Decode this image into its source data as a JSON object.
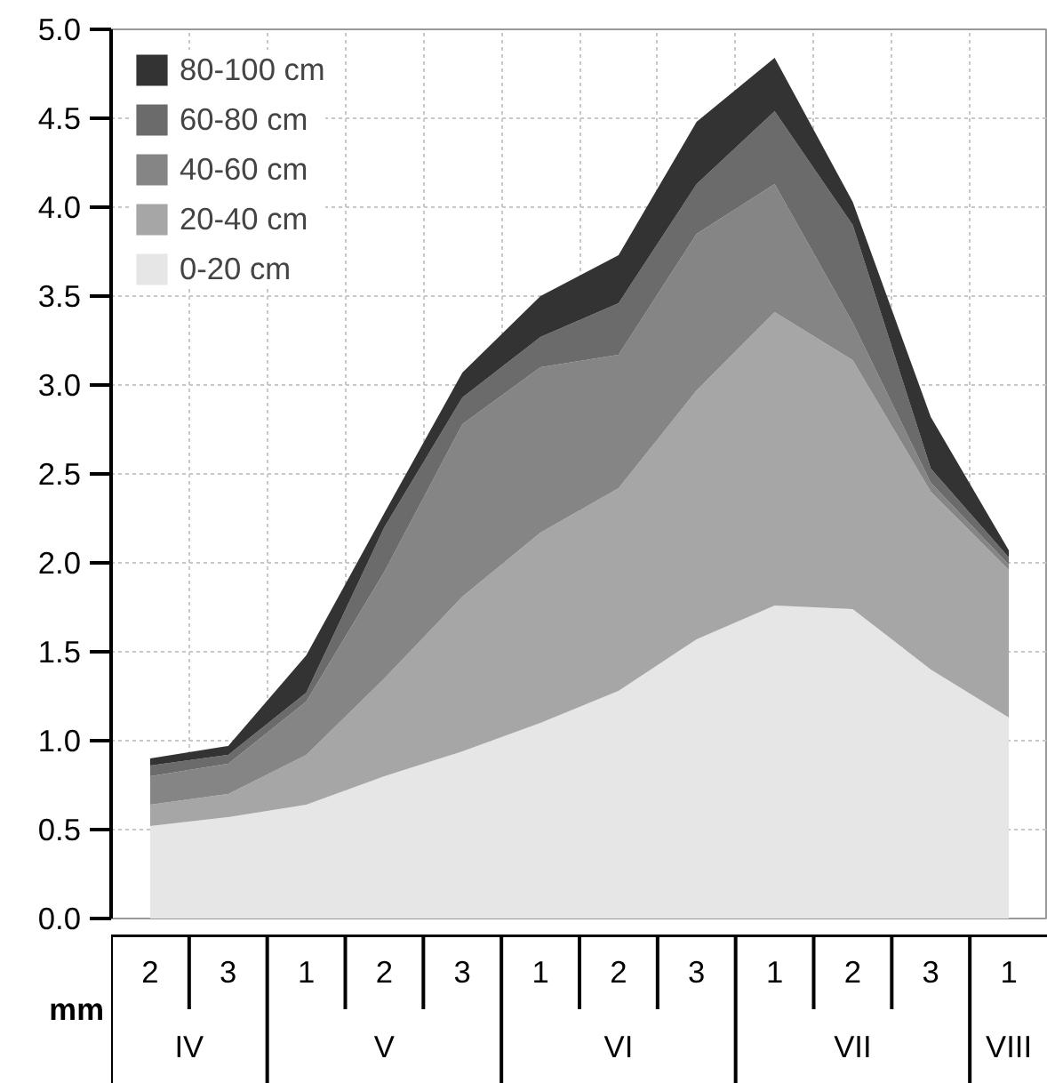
{
  "chart_data": {
    "type": "area",
    "stacked": true,
    "categories": [
      "2",
      "3",
      "1",
      "2",
      "3",
      "1",
      "2",
      "3",
      "1",
      "2",
      "3",
      "1"
    ],
    "annotations": [
      "IV",
      "V",
      "VI",
      "VII",
      "VIII"
    ],
    "ylabel": "mm",
    "ylim": [
      0,
      5.0
    ],
    "yticks": [
      {
        "value": 0,
        "label": "0.0"
      },
      {
        "value": 0.5,
        "label": "0.5"
      },
      {
        "value": 1,
        "label": "1.0"
      },
      {
        "value": 1.5,
        "label": "1.5"
      },
      {
        "value": 2,
        "label": "2.0"
      },
      {
        "value": 2.5,
        "label": "2.5"
      },
      {
        "value": 3,
        "label": "3.0"
      },
      {
        "value": 3.5,
        "label": "3.5"
      },
      {
        "value": 4,
        "label": "4.0"
      },
      {
        "value": 4.5,
        "label": "4.5"
      },
      {
        "value": 5,
        "label": "5.0"
      }
    ],
    "grid": true,
    "legend": "top left",
    "series": [
      {
        "name": "0-20 cm",
        "color": "#e6e6e6",
        "values": [
          0.52,
          0.57,
          0.64,
          0.8,
          0.94,
          1.1,
          1.28,
          1.57,
          1.76,
          1.74,
          1.4,
          1.13
        ]
      },
      {
        "name": "20-40 cm",
        "color": "#a6a6a6",
        "values": [
          0.12,
          0.13,
          0.28,
          0.55,
          0.87,
          1.07,
          1.14,
          1.4,
          1.65,
          1.4,
          1.0,
          0.83
        ]
      },
      {
        "name": "40-60 cm",
        "color": "#858585",
        "values": [
          0.16,
          0.17,
          0.3,
          0.6,
          0.97,
          0.93,
          0.75,
          0.88,
          0.72,
          0.21,
          0.05,
          0.03
        ]
      },
      {
        "name": "60-80 cm",
        "color": "#6b6b6b",
        "values": [
          0.06,
          0.05,
          0.05,
          0.25,
          0.15,
          0.17,
          0.29,
          0.28,
          0.41,
          0.55,
          0.08,
          0.04
        ]
      },
      {
        "name": "80-100 cm",
        "color": "#333333",
        "values": [
          0.04,
          0.05,
          0.21,
          0.08,
          0.14,
          0.23,
          0.27,
          0.35,
          0.3,
          0.13,
          0.29,
          0.04
        ]
      }
    ]
  }
}
